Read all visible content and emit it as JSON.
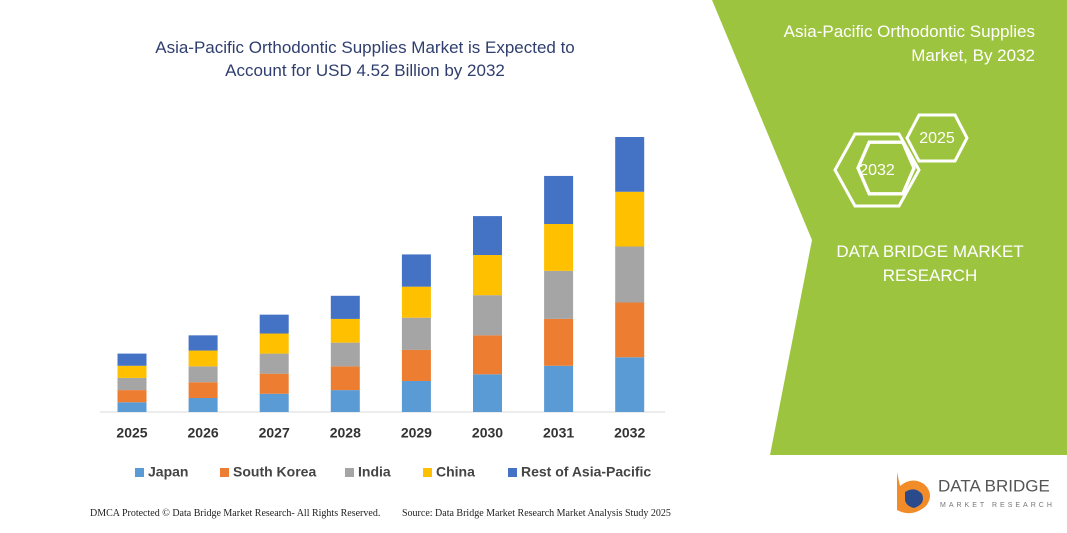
{
  "chart_data": {
    "type": "stacked-bar",
    "title": "Asia-Pacific Orthodontic Supplies Market is Expected to Account for USD 4.52 Billion by 2032",
    "categories": [
      "2025",
      "2026",
      "2027",
      "2028",
      "2029",
      "2030",
      "2031",
      "2032"
    ],
    "series": [
      {
        "name": "Japan",
        "color": "#5b9bd5",
        "values": [
          0.16,
          0.23,
          0.3,
          0.36,
          0.51,
          0.62,
          0.76,
          0.9
        ]
      },
      {
        "name": "South Korea",
        "color": "#ed7d31",
        "values": [
          0.2,
          0.26,
          0.33,
          0.39,
          0.51,
          0.64,
          0.77,
          0.9
        ]
      },
      {
        "name": "India",
        "color": "#a5a5a5",
        "values": [
          0.2,
          0.26,
          0.33,
          0.39,
          0.53,
          0.66,
          0.79,
          0.92
        ]
      },
      {
        "name": "China",
        "color": "#ffc000",
        "values": [
          0.2,
          0.26,
          0.33,
          0.39,
          0.51,
          0.66,
          0.77,
          0.9
        ]
      },
      {
        "name": "Rest of Asia-Pacific",
        "color": "#4472c4",
        "values": [
          0.2,
          0.25,
          0.31,
          0.38,
          0.53,
          0.64,
          0.79,
          0.9
        ]
      }
    ],
    "legend": "bottom"
  },
  "panel": {
    "title": "Asia-Pacific Orthodontic Supplies Market, By 2032",
    "hexagons": [
      "2032",
      "2025"
    ],
    "brand": "DATA BRIDGE MARKET RESEARCH"
  },
  "logo": {
    "name": "DATA BRIDGE",
    "tagline": "MARKET RESEARCH"
  },
  "footer": {
    "copyright": "DMCA Protected © Data Bridge Market Research- All Rights Reserved.",
    "source": "Source: Data Bridge Market Research Market Analysis Study 2025"
  }
}
